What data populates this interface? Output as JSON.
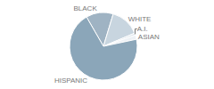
{
  "chart_data": {
    "type": "pie",
    "categories": [
      "BLACK",
      "WHITE",
      "A.I.",
      "ASIAN",
      "HISPANIC"
    ],
    "values": [
      13,
      14,
      1,
      2,
      70
    ],
    "colors": [
      "#9fb3c3",
      "#c8d5df",
      "#dce5ec",
      "#edf1f5",
      "#8ba6b9"
    ]
  }
}
